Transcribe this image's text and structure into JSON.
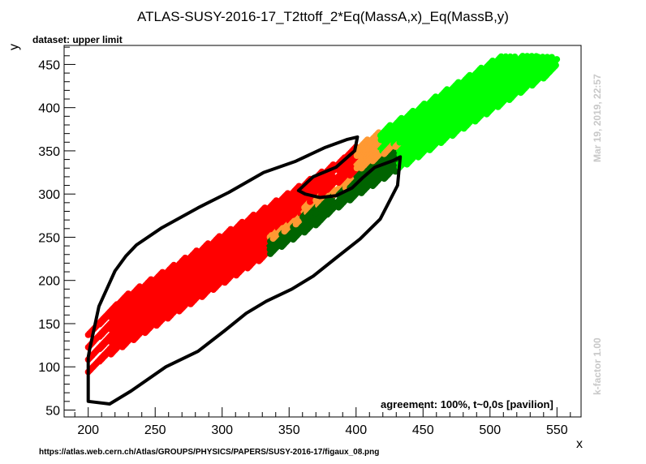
{
  "chart_data": {
    "type": "scatter",
    "title": "ATLAS-SUSY-2016-17_T2ttoff_2*Eq(MassA,x)_Eq(MassB,y)",
    "dataset_label": "dataset: upper limit",
    "xlabel": "x",
    "ylabel": "y",
    "xlim": [
      182,
      568
    ],
    "ylim": [
      42,
      472
    ],
    "x_ticks": [
      200,
      250,
      300,
      350,
      400,
      450,
      500,
      550
    ],
    "y_ticks": [
      50,
      100,
      150,
      200,
      250,
      300,
      350,
      400,
      450
    ],
    "grid": false,
    "timestamp": "Mar 19, 2019, 22:57",
    "kfactor": "k-factor 1.00",
    "agreement": "agreement: 100%, t~0.0s [pavilion]",
    "url": "https://atlas.web.cern.ch/Atlas/GROUPS/PHYSICS/PAPERS/SUSY-2016-17/figaux_08.png",
    "colors": {
      "red": "#ff0000",
      "orange": "#ff9933",
      "darkgreen": "#006400",
      "green": "#00ff00",
      "contour": "#000000"
    },
    "point_bands": {
      "description_delta_y_minus_x_from": [
        -98,
        -55
      ],
      "band_spacing_x": 8.5,
      "band_length_x": 26,
      "x_range": [
        200,
        550
      ]
    },
    "contour_points": [
      [
        200,
        111
      ],
      [
        200,
        60
      ],
      [
        216,
        57
      ],
      [
        232,
        72
      ],
      [
        258,
        100
      ],
      [
        282,
        118
      ],
      [
        302,
        142
      ],
      [
        318,
        162
      ],
      [
        333,
        176
      ],
      [
        352,
        190
      ],
      [
        368,
        205
      ],
      [
        385,
        226
      ],
      [
        403,
        248
      ],
      [
        418,
        271
      ],
      [
        431,
        310
      ],
      [
        433,
        343
      ],
      [
        428,
        339
      ],
      [
        414,
        331
      ],
      [
        405,
        319
      ],
      [
        397,
        307
      ],
      [
        385,
        298
      ],
      [
        373,
        296
      ],
      [
        362,
        300
      ],
      [
        357,
        304
      ],
      [
        368,
        320
      ],
      [
        385,
        331
      ],
      [
        399,
        350
      ],
      [
        401,
        366
      ],
      [
        393,
        363
      ],
      [
        377,
        354
      ],
      [
        355,
        338
      ],
      [
        331,
        325
      ],
      [
        305,
        302
      ],
      [
        282,
        284
      ],
      [
        255,
        261
      ],
      [
        236,
        241
      ],
      [
        228,
        228
      ],
      [
        220,
        211
      ],
      [
        208,
        170
      ],
      [
        201,
        120
      ],
      [
        200,
        111
      ]
    ]
  }
}
